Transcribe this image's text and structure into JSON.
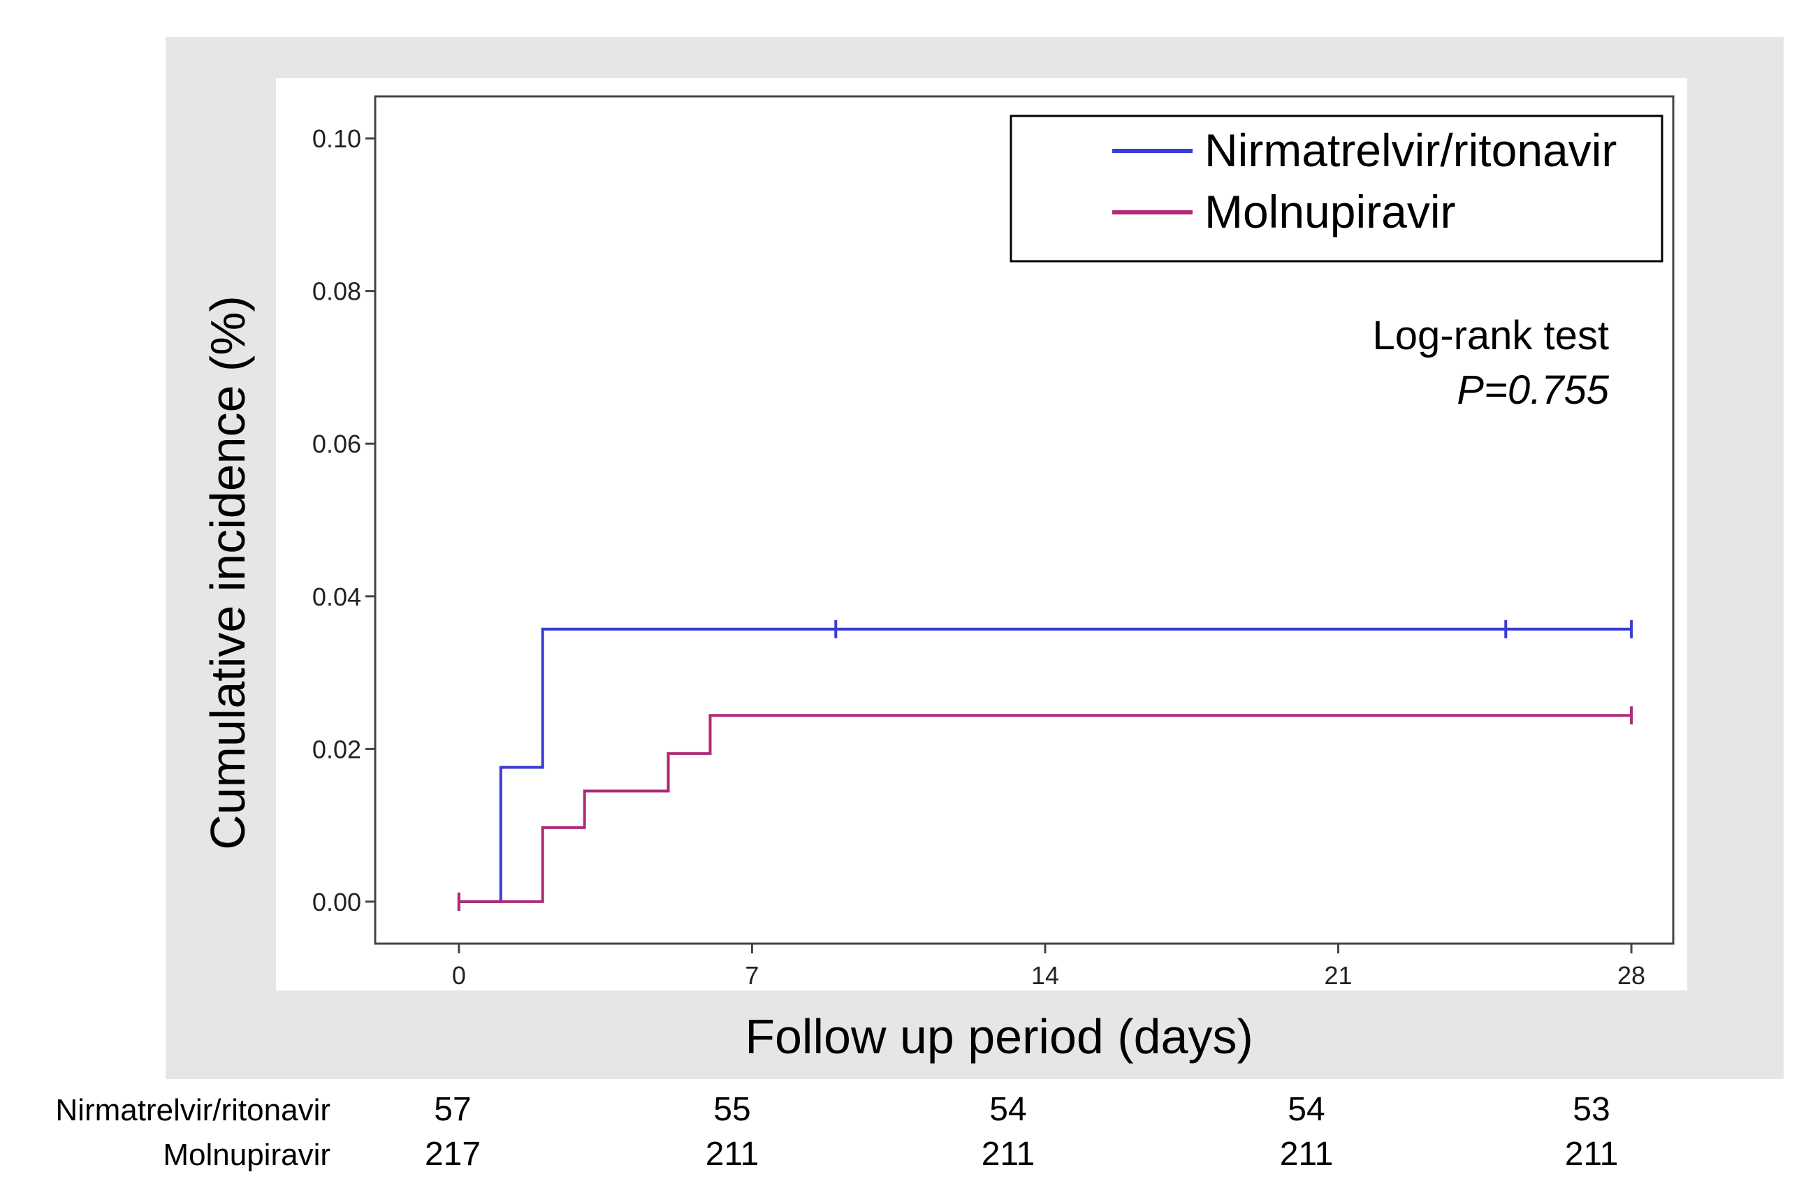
{
  "chart_data": {
    "type": "line",
    "subtype": "kaplan-meier cumulative incidence",
    "xlabel": "Follow up period (days)",
    "ylabel": "Cumulative  incidence (%)",
    "xlim": [
      -2,
      29
    ],
    "ylim": [
      -0.0055,
      0.1055
    ],
    "xticks": [
      0,
      7,
      14,
      21,
      28
    ],
    "yticks": [
      0.0,
      0.02,
      0.04,
      0.06,
      0.08,
      0.1
    ],
    "xtick_labels": [
      "0",
      "7",
      "14",
      "21",
      "28"
    ],
    "ytick_labels": [
      "0.00",
      "0.02",
      "0.04",
      "0.06",
      "0.08",
      "0.10"
    ],
    "legend_position": "top-right",
    "series": [
      {
        "name": "Nirmatrelvir/ritonavir",
        "color": "#3b3bd6",
        "steps": [
          [
            0,
            0.0
          ],
          [
            1,
            0.0176
          ],
          [
            2,
            0.0357
          ],
          [
            28,
            0.0357
          ]
        ],
        "censor_ticks": [
          [
            0,
            0.0
          ],
          [
            9,
            0.0357
          ],
          [
            25,
            0.0357
          ],
          [
            28,
            0.0357
          ]
        ]
      },
      {
        "name": "Molnupiravir",
        "color": "#b02a78",
        "steps": [
          [
            0,
            0.0
          ],
          [
            2,
            0.0097
          ],
          [
            3,
            0.0145
          ],
          [
            5,
            0.0194
          ],
          [
            6,
            0.0244
          ],
          [
            28,
            0.0244
          ]
        ],
        "censor_ticks": [
          [
            0,
            0.0
          ],
          [
            28,
            0.0244
          ]
        ]
      }
    ],
    "annotation": {
      "line1": "Log-rank test",
      "line2": "P=0.755"
    }
  },
  "risk_table": {
    "rows": [
      {
        "label": "Nirmatrelvir/ritonavir",
        "counts": [
          "57",
          "55",
          "54",
          "54",
          "53"
        ]
      },
      {
        "label": "Molnupiravir",
        "counts": [
          "217",
          "211",
          "211",
          "211",
          "211"
        ]
      }
    ]
  }
}
